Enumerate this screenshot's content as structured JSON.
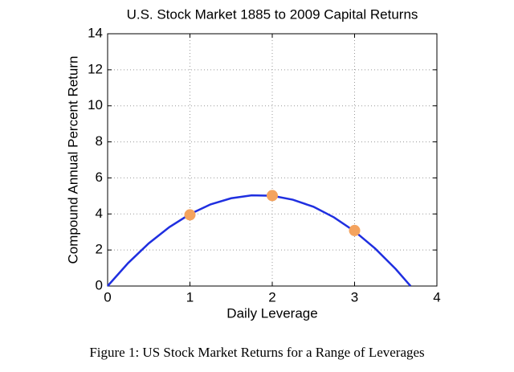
{
  "chart_data": {
    "type": "line",
    "title": "U.S. Stock Market 1885 to 2009 Capital Returns",
    "xlabel": "Daily Leverage",
    "ylabel": "Compound Annual Percent Return",
    "xlim": [
      0,
      4
    ],
    "xticks": [
      0,
      1,
      2,
      3,
      4
    ],
    "ylim": [
      0,
      14
    ],
    "yticks": [
      0,
      2,
      4,
      6,
      8,
      10,
      12,
      14
    ],
    "grid": true,
    "series": [
      {
        "type": "line",
        "color": "#1f2fe0",
        "x": [
          0,
          0.25,
          0.5,
          0.75,
          1,
          1.25,
          1.5,
          1.75,
          2,
          2.25,
          2.5,
          2.75,
          3,
          3.25,
          3.5,
          3.68
        ],
        "values": [
          0,
          1.28,
          2.37,
          3.27,
          3.99,
          4.53,
          4.87,
          5.03,
          5.01,
          4.79,
          4.4,
          3.81,
          3.04,
          2.08,
          0.94,
          0
        ]
      },
      {
        "type": "scatter",
        "color": "#f4a35e",
        "x": [
          1,
          2,
          3
        ],
        "values": [
          3.95,
          5.02,
          3.08
        ]
      }
    ]
  },
  "caption": "Figure 1: US Stock Market Returns for a Range of Leverages"
}
